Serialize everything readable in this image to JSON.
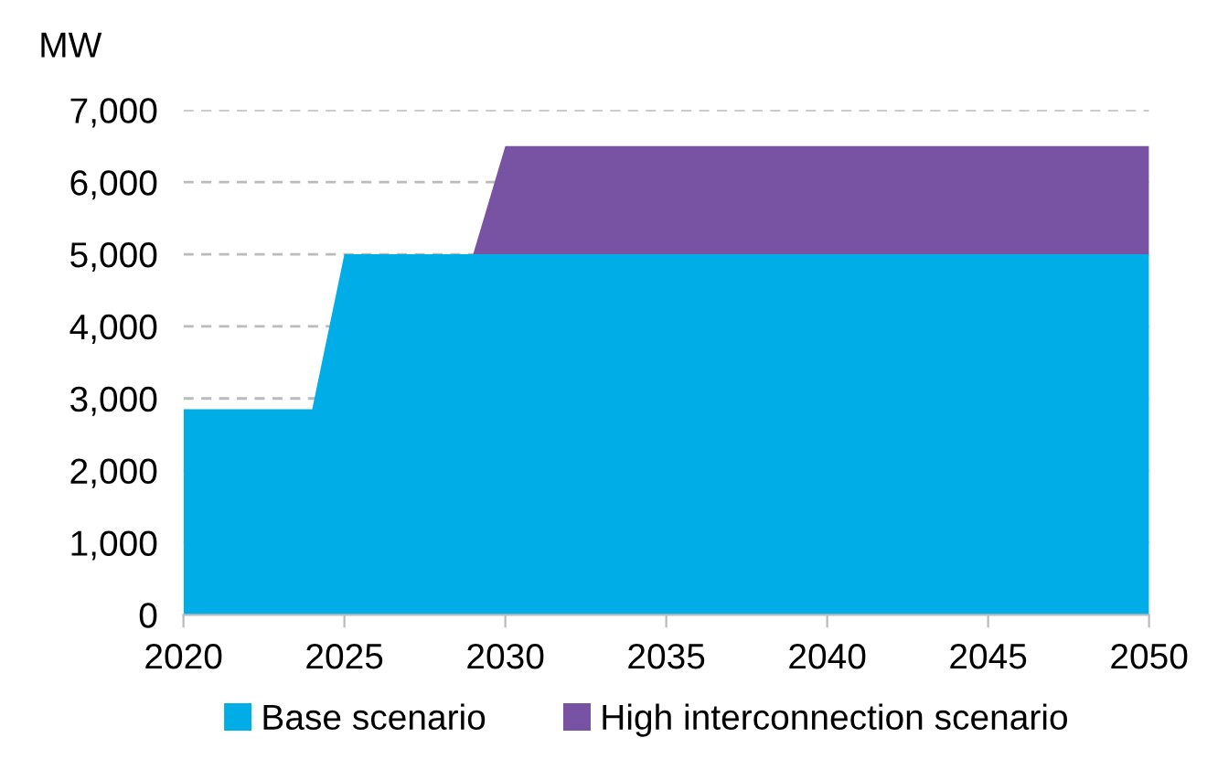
{
  "chart_data": {
    "type": "area",
    "stacked": true,
    "ylabel": "MW",
    "x": [
      2020,
      2024,
      2025,
      2029,
      2030,
      2050
    ],
    "series": [
      {
        "name": "Base scenario",
        "color": "#00ade6",
        "values": [
          2850,
          2850,
          5000,
          5000,
          5000,
          5000
        ]
      },
      {
        "name": "High interconnection scenario",
        "color": "#7853a4",
        "values": [
          0,
          0,
          0,
          0,
          1500,
          1500
        ]
      }
    ],
    "xlim": [
      2020,
      2050
    ],
    "xticks": [
      2020,
      2025,
      2030,
      2035,
      2040,
      2045,
      2050
    ],
    "ylim": [
      0,
      7000
    ],
    "yticks": [
      {
        "value": 0,
        "label": "0"
      },
      {
        "value": 1000,
        "label": "1,000"
      },
      {
        "value": 2000,
        "label": "2,000"
      },
      {
        "value": 3000,
        "label": "3,000"
      },
      {
        "value": 4000,
        "label": "4,000"
      },
      {
        "value": 5000,
        "label": "5,000"
      },
      {
        "value": 6000,
        "label": "6,000"
      },
      {
        "value": 7000,
        "label": "7,000"
      }
    ],
    "grid": "y",
    "legend": "bottom"
  }
}
